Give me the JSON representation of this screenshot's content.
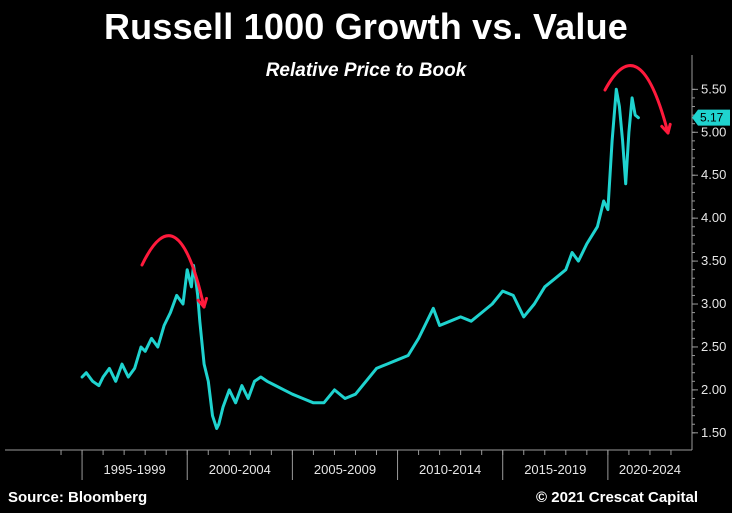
{
  "title": "Russell 1000 Growth vs. Value",
  "subtitle": "Relative Price to Book",
  "footer": {
    "source": "Source: Bloomberg",
    "copyright": "© 2021 Crescat Capital"
  },
  "colors": {
    "background": "#000000",
    "series": "#1fd3cf",
    "annotation_arrow": "#ff1a3c",
    "text": "#ffffff"
  },
  "chart_data": {
    "type": "line",
    "title": "Russell 1000 Growth vs. Value",
    "subtitle": "Relative Price to Book",
    "xlabel": "",
    "ylabel": "",
    "x_categories": [
      "1995-1999",
      "2000-2004",
      "2005-2009",
      "2010-2014",
      "2015-2019",
      "2020-2024"
    ],
    "xlim": [
      1993,
      2024
    ],
    "ylim": [
      1.3,
      5.9
    ],
    "y_ticks": [
      "1.50",
      "2.00",
      "2.50",
      "3.00",
      "3.50",
      "4.00",
      "4.50",
      "5.00",
      "5.50"
    ],
    "grid": false,
    "last_value_label": "5.17",
    "series": [
      {
        "color": "#1fd3cf",
        "x": [
          1995.0,
          1995.2,
          1995.5,
          1995.8,
          1996.0,
          1996.3,
          1996.6,
          1996.9,
          1997.2,
          1997.5,
          1997.8,
          1998.0,
          1998.3,
          1998.6,
          1998.9,
          1999.2,
          1999.5,
          1999.8,
          2000.0,
          2000.2,
          2000.3,
          2000.4,
          2000.5,
          2000.6,
          2000.8,
          2001.0,
          2001.2,
          2001.4,
          2001.5,
          2001.7,
          2002.0,
          2002.3,
          2002.6,
          2002.9,
          2003.2,
          2003.5,
          2003.8,
          2004.2,
          2004.6,
          2005.0,
          2005.5,
          2006.0,
          2006.5,
          2007.0,
          2007.5,
          2008.0,
          2008.5,
          2009.0,
          2009.5,
          2010.0,
          2010.5,
          2011.0,
          2011.3,
          2011.7,
          2012.0,
          2012.5,
          2013.0,
          2013.5,
          2014.0,
          2014.5,
          2015.0,
          2015.5,
          2016.0,
          2016.5,
          2017.0,
          2017.5,
          2018.0,
          2018.3,
          2018.6,
          2019.0,
          2019.5,
          2019.8,
          2020.0,
          2020.2,
          2020.4,
          2020.55,
          2020.7,
          2020.85,
          2021.0,
          2021.15,
          2021.3,
          2021.45
        ],
        "values": [
          2.15,
          2.2,
          2.1,
          2.05,
          2.15,
          2.25,
          2.1,
          2.3,
          2.15,
          2.25,
          2.5,
          2.45,
          2.6,
          2.5,
          2.75,
          2.9,
          3.1,
          3.0,
          3.4,
          3.2,
          3.45,
          3.3,
          3.1,
          2.8,
          2.3,
          2.1,
          1.7,
          1.55,
          1.6,
          1.8,
          2.0,
          1.85,
          2.05,
          1.9,
          2.1,
          2.15,
          2.1,
          2.05,
          2.0,
          1.95,
          1.9,
          1.85,
          1.85,
          2.0,
          1.9,
          1.95,
          2.1,
          2.25,
          2.3,
          2.35,
          2.4,
          2.6,
          2.75,
          2.95,
          2.75,
          2.8,
          2.85,
          2.8,
          2.9,
          3.0,
          3.15,
          3.1,
          2.85,
          3.0,
          3.2,
          3.3,
          3.4,
          3.6,
          3.5,
          3.7,
          3.9,
          4.2,
          4.1,
          4.9,
          5.5,
          5.3,
          4.9,
          4.4,
          5.0,
          5.4,
          5.2,
          5.17
        ]
      }
    ]
  }
}
